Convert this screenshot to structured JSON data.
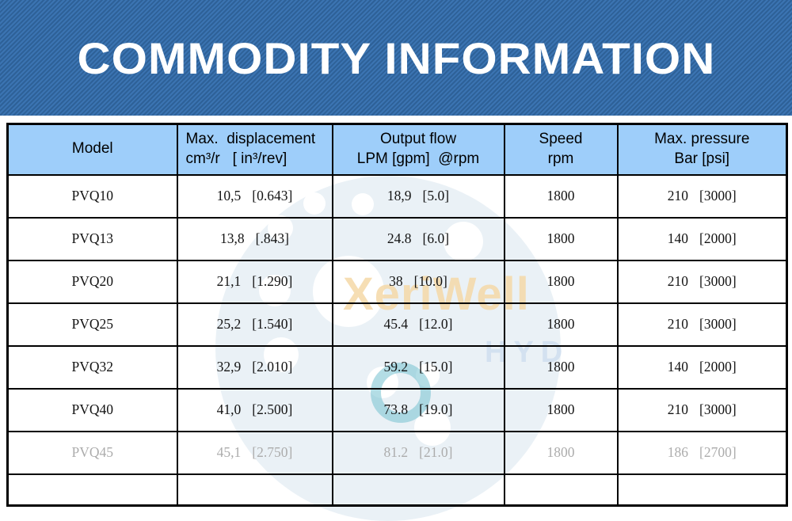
{
  "banner": {
    "title": "COMMODITY INFORMATION",
    "bg_color": "#3B74B2",
    "stripe_color": "#2E6198",
    "title_color": "#FFFFFF"
  },
  "watermark": {
    "brand": "XeriWell",
    "sub": "HYD",
    "brand_color": "#F5D9A8",
    "sub_color": "#D3E1F0",
    "teal_color": "#74C1D0"
  },
  "table": {
    "header_bg": "#9ECEFA",
    "headers": [
      {
        "line1": "Model",
        "line2": ""
      },
      {
        "line1": "Max.  displacement",
        "line2": "cm³/r   [ in³/rev]"
      },
      {
        "line1": "Output flow",
        "line2": "LPM [gpm]  @rpm"
      },
      {
        "line1": "Speed",
        "line2": "rpm"
      },
      {
        "line1": "Max. pressure",
        "line2": "Bar [psi]"
      }
    ],
    "rows": [
      {
        "model": "PVQ10",
        "displacement": [
          "10,5",
          "[0.643]"
        ],
        "flow": [
          "18,9",
          "[5.0]"
        ],
        "speed": "1800",
        "pressure": [
          "210",
          "[3000]"
        ],
        "dimmed": false
      },
      {
        "model": "PVQ13",
        "displacement": [
          "13,8",
          "[.843]"
        ],
        "flow": [
          "24.8",
          "[6.0]"
        ],
        "speed": "1800",
        "pressure": [
          "140",
          "[2000]"
        ],
        "dimmed": false
      },
      {
        "model": "PVQ20",
        "displacement": [
          "21,1",
          "[1.290]"
        ],
        "flow": [
          "38",
          "[10.0]"
        ],
        "speed": "1800",
        "pressure": [
          "210",
          "[3000]"
        ],
        "dimmed": false
      },
      {
        "model": "PVQ25",
        "displacement": [
          "25,2",
          "[1.540]"
        ],
        "flow": [
          "45.4",
          "[12.0]"
        ],
        "speed": "1800",
        "pressure": [
          "210",
          "[3000]"
        ],
        "dimmed": false
      },
      {
        "model": "PVQ32",
        "displacement": [
          "32,9",
          "[2.010]"
        ],
        "flow": [
          "59.2",
          "[15.0]"
        ],
        "speed": "1800",
        "pressure": [
          "140",
          "[2000]"
        ],
        "dimmed": false
      },
      {
        "model": "PVQ40",
        "displacement": [
          "41,0",
          "[2.500]"
        ],
        "flow": [
          "73.8",
          "[19.0]"
        ],
        "speed": "1800",
        "pressure": [
          "210",
          "[3000]"
        ],
        "dimmed": false
      },
      {
        "model": "PVQ45",
        "displacement": [
          "45,1",
          "[2.750]"
        ],
        "flow": [
          "81.2",
          "[21.0]"
        ],
        "speed": "1800",
        "pressure": [
          "186",
          "[2700]"
        ],
        "dimmed": true
      }
    ]
  }
}
